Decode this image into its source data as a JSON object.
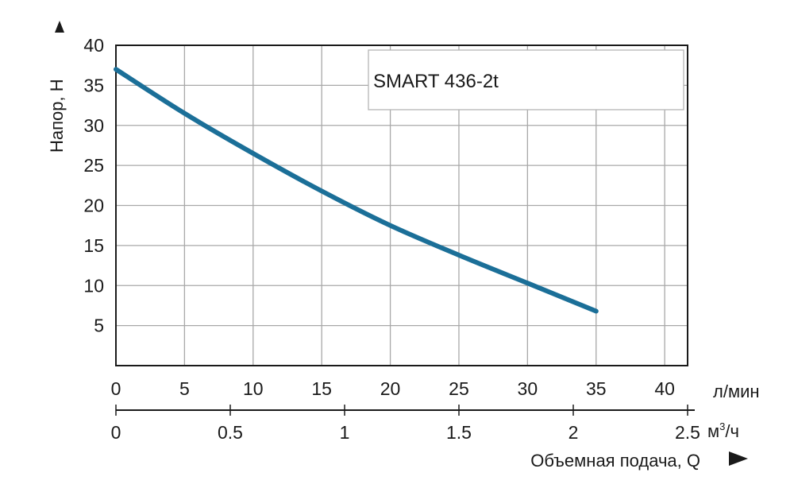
{
  "chart_data": {
    "type": "line",
    "title": "",
    "ylabel": "Напор, Н",
    "xlabel": "Объемная подача, Q",
    "ylim": [
      0,
      40
    ],
    "y_ticks": [
      "5",
      "10",
      "15",
      "20",
      "25",
      "30",
      "35",
      "40"
    ],
    "y_tick_values": [
      5,
      10,
      15,
      20,
      25,
      30,
      35,
      40
    ],
    "x_primary": {
      "unit": "л/мин",
      "range": [
        0,
        41.67
      ],
      "ticks": [
        "0",
        "5",
        "10",
        "15",
        "20",
        "25",
        "30",
        "35",
        "40"
      ],
      "tick_values": [
        0,
        5,
        10,
        15,
        20,
        25,
        30,
        35,
        40
      ]
    },
    "x_secondary": {
      "unit_base": "м",
      "unit_sup": "3",
      "unit_tail": "/ч",
      "range": [
        0,
        2.5
      ],
      "ticks": [
        "0",
        "0.5",
        "1",
        "1.5",
        "2",
        "2.5"
      ],
      "tick_values": [
        0,
        0.5,
        1,
        1.5,
        2,
        2.5
      ]
    },
    "grid": true,
    "legend": "top-right",
    "series": [
      {
        "name": "SMART 436-2t",
        "color": "#1b6f98",
        "x": [
          0,
          5,
          10,
          15,
          20,
          25,
          30,
          35
        ],
        "y": [
          37,
          31.5,
          26.5,
          21.8,
          17.5,
          13.8,
          10.3,
          6.8
        ]
      }
    ]
  }
}
